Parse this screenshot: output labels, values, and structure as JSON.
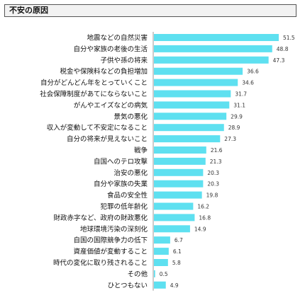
{
  "chart_data": {
    "type": "bar",
    "orientation": "horizontal",
    "title": "不安の原因",
    "bar_color": "#5ee0f0",
    "categories": [
      "地震などの自然災害",
      "自分や家族の老後の生活",
      "子供や孫の将来",
      "税金や保険料などの負担増加",
      "自分がどんどん年をとっていくこと",
      "社会保障制度があてにならないこと",
      "がんやエイズなどの病気",
      "景気の悪化",
      "収入が変動して不安定になること",
      "自分の将来が見えないこと",
      "戦争",
      "自国へのテロ攻撃",
      "治安の悪化",
      "自分や家族の失業",
      "食品の安全性",
      "犯罪の低年齢化",
      "財政赤字など、政府の財政悪化",
      "地球環境汚染の深刻化",
      "自国の国際競争力の低下",
      "資産価値が変動すること",
      "時代の変化に取り残されること",
      "その他",
      "ひとつもない"
    ],
    "values": [
      51.5,
      48.8,
      47.3,
      36.6,
      34.6,
      31.7,
      31.1,
      29.9,
      28.9,
      27.3,
      21.6,
      21.3,
      20.3,
      20.3,
      19.8,
      16.2,
      16.8,
      14.9,
      6.7,
      6.1,
      5.8,
      0.5,
      4.9
    ],
    "value_labels": [
      "51.5",
      "48.8",
      "47.3",
      "36.6",
      "34.6",
      "31.7",
      "31.1",
      "29.9",
      "28.9",
      "27.3",
      "21.6",
      "21.3",
      "20.3",
      "20.3",
      "19.8",
      "16.2",
      "16.8",
      "14.9",
      "6.7",
      "6.1",
      "5.8",
      "0.5",
      "4.9"
    ],
    "xlim": [
      0,
      55
    ],
    "grid": false,
    "legend": "none"
  }
}
